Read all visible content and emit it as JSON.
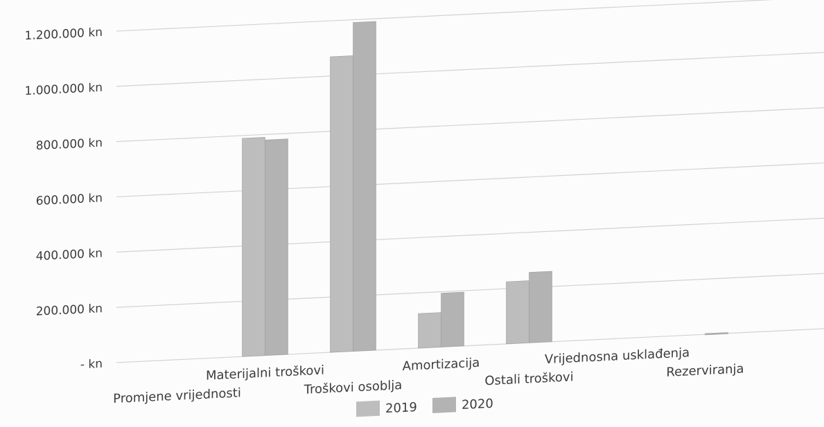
{
  "chart_data": {
    "type": "bar",
    "categories": [
      "Promjene vrijednosti",
      "Materijalni troškovi",
      "Troškovi osoblja",
      "Amortizacija",
      "Ostali troškovi",
      "Vrijednosna usklađenja",
      "Rezerviranja"
    ],
    "series": [
      {
        "name": "2019",
        "values": [
          0,
          790000,
          1070000,
          125000,
          225000,
          0,
          0
        ]
      },
      {
        "name": "2020",
        "values": [
          0,
          780000,
          1190000,
          195000,
          255000,
          0,
          3000
        ]
      }
    ],
    "y_ticks": [
      "- kn",
      "200.000 kn",
      "400.000 kn",
      "600.000 kn",
      "800.000 kn",
      "1.000.000 kn",
      "1.200.000 kn"
    ],
    "ylim": [
      0,
      1200000
    ],
    "grid": true,
    "legend_position": "bottom",
    "colors": {
      "series_2019": "#bdbdbd",
      "series_2020": "#b3b3b3",
      "grid": "#d2d2d2",
      "text": "#3c3c3c"
    }
  }
}
